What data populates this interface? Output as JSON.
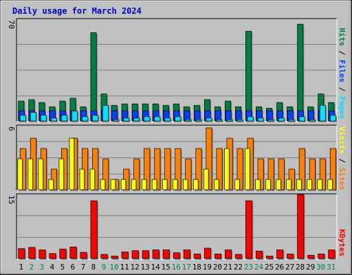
{
  "title": "Daily usage for March 2024",
  "colors": {
    "background": "#C0C0C0",
    "title": "#0000C8",
    "hits": "#008040",
    "files": "#0040FF",
    "pages": "#00E0FF",
    "visits": "#FFFF00",
    "sites": "#FF8000",
    "kbytes": "#FF0000",
    "weekday_label": "#000000",
    "weekend_label": "#00805C",
    "grid": "#808080"
  },
  "chart_data": [
    {
      "type": "bar",
      "name": "hits-files-pages",
      "ymax_label": "70",
      "ymax": 70,
      "legend": [
        {
          "label": "Pages",
          "color": "#00E0FF"
        },
        {
          "label": "Files",
          "color": "#0040FF"
        },
        {
          "label": "Hits",
          "color": "#008040"
        }
      ],
      "categories": [
        "1",
        "2",
        "3",
        "4",
        "5",
        "6",
        "7",
        "8",
        "9",
        "10",
        "11",
        "12",
        "13",
        "14",
        "15",
        "16",
        "17",
        "18",
        "19",
        "20",
        "21",
        "22",
        "23",
        "24",
        "25",
        "26",
        "27",
        "28",
        "29",
        "30",
        "31"
      ],
      "series": [
        {
          "name": "Hits",
          "values": [
            14,
            15,
            13,
            10,
            14,
            16,
            10,
            62,
            19,
            11,
            12,
            12,
            12,
            12,
            11,
            12,
            10,
            11,
            15,
            10,
            14,
            10,
            63,
            10,
            9,
            13,
            10,
            68,
            10,
            19,
            13
          ]
        },
        {
          "name": "Files",
          "values": [
            8,
            8,
            8,
            8,
            8,
            8,
            8,
            8,
            8,
            8,
            8,
            8,
            8,
            8,
            8,
            8,
            8,
            8,
            8,
            8,
            8,
            8,
            8,
            8,
            8,
            8,
            8,
            8,
            8,
            8,
            8
          ]
        },
        {
          "name": "Pages",
          "values": [
            4,
            6,
            4,
            2,
            4,
            7,
            3,
            4,
            11,
            1,
            2,
            2,
            3,
            3,
            2,
            3,
            1,
            1,
            2,
            1,
            1,
            1,
            3,
            2,
            1,
            2,
            1,
            3,
            1,
            11,
            4
          ]
        }
      ]
    },
    {
      "type": "bar",
      "name": "visits-sites",
      "ymax_label": "6",
      "ymax": 6,
      "legend": [
        {
          "label": "Sites",
          "color": "#FF8000"
        },
        {
          "label": "Visits",
          "color": "#FFFF00"
        }
      ],
      "categories": [
        "1",
        "2",
        "3",
        "4",
        "5",
        "6",
        "7",
        "8",
        "9",
        "10",
        "11",
        "12",
        "13",
        "14",
        "15",
        "16",
        "17",
        "18",
        "19",
        "20",
        "21",
        "22",
        "23",
        "24",
        "25",
        "26",
        "27",
        "28",
        "29",
        "30",
        "31"
      ],
      "series": [
        {
          "name": "Visits",
          "values": [
            3,
            3,
            3,
            1,
            3,
            5,
            2,
            2,
            1,
            1,
            1,
            1,
            1,
            1,
            1,
            1,
            1,
            1,
            2,
            1,
            4,
            1,
            4,
            1,
            1,
            1,
            1,
            1,
            1,
            1,
            1
          ]
        },
        {
          "name": "Sites",
          "values": [
            4,
            5,
            4,
            2,
            4,
            5,
            4,
            4,
            3,
            1,
            2,
            3,
            4,
            4,
            4,
            4,
            3,
            4,
            6,
            4,
            5,
            4,
            5,
            3,
            3,
            3,
            2,
            4,
            3,
            3,
            4
          ]
        }
      ]
    },
    {
      "type": "bar",
      "name": "kbytes",
      "ymax_label": "15",
      "ymax": 15,
      "legend": [
        {
          "label": "KBytes",
          "color": "#FF0000"
        }
      ],
      "categories": [
        "1",
        "2",
        "3",
        "4",
        "5",
        "6",
        "7",
        "8",
        "9",
        "10",
        "11",
        "12",
        "13",
        "14",
        "15",
        "16",
        "17",
        "18",
        "19",
        "20",
        "21",
        "22",
        "23",
        "24",
        "25",
        "26",
        "27",
        "28",
        "29",
        "30",
        "31"
      ],
      "series": [
        {
          "name": "KBytes",
          "values": [
            2.4,
            2.7,
            2.1,
            1.2,
            2.3,
            2.8,
            1.5,
            14,
            1,
            0.6,
            1.6,
            1.9,
            1.9,
            2.1,
            2.1,
            1.4,
            2.1,
            1.1,
            2.5,
            1.1,
            2.1,
            1,
            14,
            1.8,
            0.6,
            2.1,
            1.1,
            15.5,
            0.8,
            1.1,
            2.1
          ]
        }
      ]
    }
  ],
  "day_labels": [
    "1",
    "2",
    "3",
    "4",
    "5",
    "6",
    "7",
    "8",
    "9",
    "10",
    "11",
    "12",
    "13",
    "14",
    "15",
    "16",
    "17",
    "18",
    "19",
    "20",
    "21",
    "22",
    "23",
    "24",
    "25",
    "26",
    "27",
    "28",
    "29",
    "30",
    "31"
  ],
  "weekend_days": [
    2,
    3,
    9,
    10,
    16,
    17,
    23,
    24,
    30,
    31
  ]
}
